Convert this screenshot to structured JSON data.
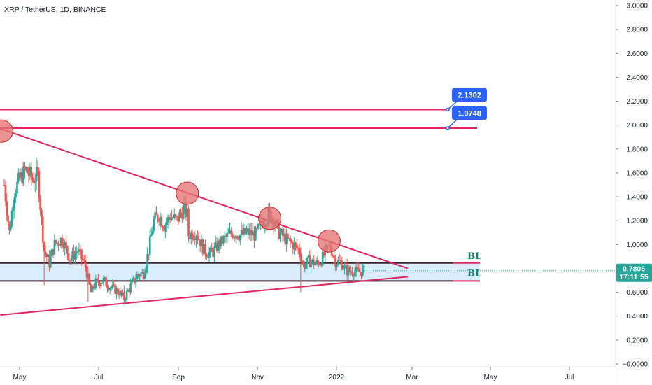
{
  "header": {
    "title": "XRP / TetherUS, 1D, BINANCE"
  },
  "colors": {
    "up": "#26a69a",
    "down": "#ef5350",
    "trend": "#e0245e",
    "zone_fill": "#d8eefc",
    "zone_line": "#3a1f2f",
    "callout": "#2962ff",
    "price_tag": "#26a69a",
    "circle_fill": "#e57373",
    "circle_stroke": "#c62828",
    "bl_text": "#1a7f73"
  },
  "price_tag": {
    "price": "0.7805",
    "countdown": "17:11:55",
    "value": 0.7805
  },
  "annotations": {
    "bl_labels": [
      "BL",
      "BL"
    ],
    "callouts": [
      {
        "text": "2.1302",
        "price": 2.1302
      },
      {
        "text": "1.9748",
        "price": 1.9748
      }
    ]
  },
  "chart_data": {
    "type": "candlestick",
    "title": "XRP / TetherUS, 1D, BINANCE",
    "x_ticks": [
      "May",
      "Jul",
      "Sep",
      "Nov",
      "2022",
      "Mar",
      "May",
      "Jul"
    ],
    "y_ticks": [
      "3.0000",
      "2.8000",
      "2.6000",
      "2.4000",
      "2.2000",
      "2.0000",
      "1.8000",
      "1.6000",
      "1.4000",
      "1.2000",
      "1.0000",
      "0.8000",
      "0.6000",
      "0.4000",
      "0.2000",
      "−0.0000"
    ],
    "ylim": [
      -0.05,
      3.05
    ],
    "price_path": [
      [
        "2021-04-18",
        1.5
      ],
      [
        "2021-04-22",
        1.1
      ],
      [
        "2021-04-26",
        1.45
      ],
      [
        "2021-04-30",
        1.55
      ],
      [
        "2021-05-05",
        1.62
      ],
      [
        "2021-05-10",
        1.55
      ],
      [
        "2021-05-14",
        1.58
      ],
      [
        "2021-05-19",
        0.95
      ],
      [
        "2021-05-23",
        0.85
      ],
      [
        "2021-05-27",
        1.0
      ],
      [
        "2021-06-02",
        1.05
      ],
      [
        "2021-06-08",
        0.88
      ],
      [
        "2021-06-14",
        0.95
      ],
      [
        "2021-06-20",
        0.82
      ],
      [
        "2021-06-24",
        0.6
      ],
      [
        "2021-06-28",
        0.68
      ],
      [
        "2021-07-04",
        0.7
      ],
      [
        "2021-07-10",
        0.64
      ],
      [
        "2021-07-16",
        0.6
      ],
      [
        "2021-07-20",
        0.55
      ],
      [
        "2021-07-25",
        0.65
      ],
      [
        "2021-07-30",
        0.74
      ],
      [
        "2021-08-04",
        0.76
      ],
      [
        "2021-08-08",
        0.95
      ],
      [
        "2021-08-12",
        1.2
      ],
      [
        "2021-08-16",
        1.25
      ],
      [
        "2021-08-20",
        1.16
      ],
      [
        "2021-08-25",
        1.24
      ],
      [
        "2021-08-30",
        1.2
      ],
      [
        "2021-09-04",
        1.3
      ],
      [
        "2021-09-07",
        1.25
      ],
      [
        "2021-09-08",
        1.08
      ],
      [
        "2021-09-14",
        1.1
      ],
      [
        "2021-09-20",
        0.95
      ],
      [
        "2021-09-26",
        0.92
      ],
      [
        "2021-10-01",
        1.0
      ],
      [
        "2021-10-06",
        1.05
      ],
      [
        "2021-10-12",
        1.1
      ],
      [
        "2021-10-18",
        1.08
      ],
      [
        "2021-10-24",
        1.1
      ],
      [
        "2021-10-30",
        1.08
      ],
      [
        "2021-11-04",
        1.18
      ],
      [
        "2021-11-09",
        1.25
      ],
      [
        "2021-11-13",
        1.22
      ],
      [
        "2021-11-17",
        1.1
      ],
      [
        "2021-11-22",
        1.05
      ],
      [
        "2021-11-28",
        1.0
      ],
      [
        "2021-12-03",
        0.95
      ],
      [
        "2021-12-06",
        0.82
      ],
      [
        "2021-12-10",
        0.86
      ],
      [
        "2021-12-16",
        0.84
      ],
      [
        "2021-12-20",
        0.87
      ],
      [
        "2021-12-24",
        0.95
      ],
      [
        "2021-12-27",
        0.98
      ],
      [
        "2021-12-31",
        0.86
      ],
      [
        "2022-01-04",
        0.85
      ],
      [
        "2022-01-09",
        0.78
      ],
      [
        "2022-01-13",
        0.78
      ],
      [
        "2022-01-17",
        0.77
      ],
      [
        "2022-01-21",
        0.78
      ],
      [
        "2022-01-23",
        0.78
      ]
    ],
    "extremes": [
      [
        "2021-05-19",
        0.66,
        1.0
      ],
      [
        "2021-06-22",
        0.52,
        0.82
      ],
      [
        "2021-07-20",
        0.5,
        0.66
      ],
      [
        "2021-09-06",
        1.22,
        1.41
      ],
      [
        "2021-11-10",
        1.18,
        1.35
      ],
      [
        "2021-12-04",
        0.6,
        0.98
      ],
      [
        "2021-12-23",
        0.9,
        1.0
      ]
    ],
    "horizontal_levels": [
      {
        "price": 2.1302,
        "label": "2.1302"
      },
      {
        "price": 1.9748,
        "label": "1.9748"
      },
      {
        "price": 0.845,
        "label": "BL"
      },
      {
        "price": 0.695,
        "label": "BL"
      }
    ],
    "zone": {
      "top": 0.845,
      "bottom": 0.695
    },
    "trendlines": [
      {
        "name": "descending resistance",
        "from": [
          "2021-04-15",
          1.97
        ],
        "to": [
          "2022-02-25",
          0.8
        ]
      },
      {
        "name": "ascending support",
        "from": [
          "2021-04-15",
          0.41
        ],
        "to": [
          "2022-02-25",
          0.73
        ]
      }
    ],
    "touch_points": [
      [
        "2021-04-16",
        1.95
      ],
      [
        "2021-09-07",
        1.43
      ],
      [
        "2021-11-10",
        1.22
      ],
      [
        "2021-12-26",
        1.03
      ]
    ],
    "last_price": 0.7805,
    "grid": false,
    "legend": "none"
  }
}
